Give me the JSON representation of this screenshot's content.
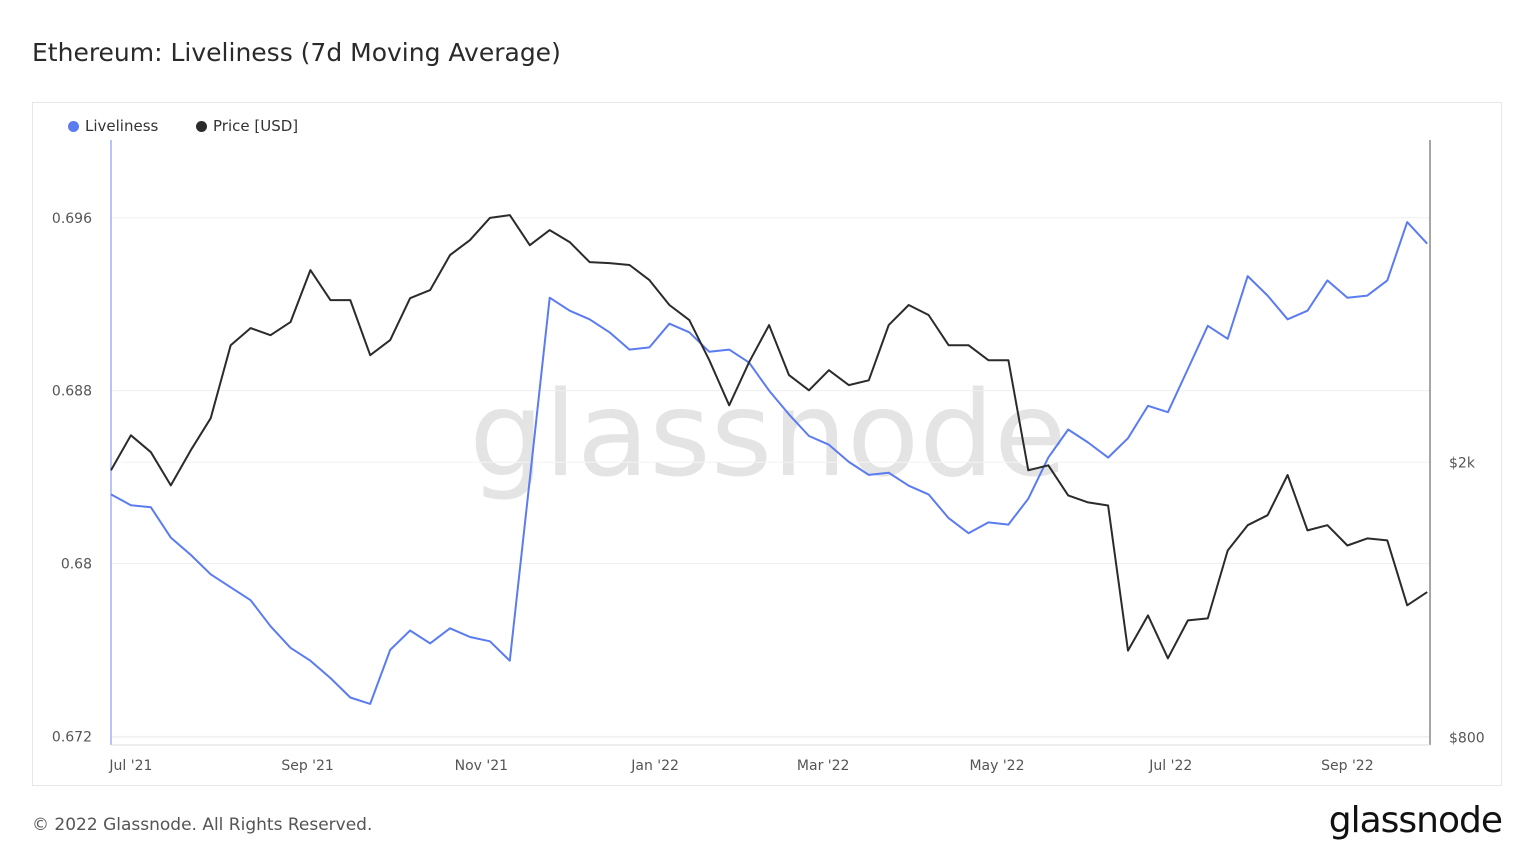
{
  "title": "Ethereum: Liveliness (7d Moving Average)",
  "footer": "© 2022 Glassnode. All Rights Reserved.",
  "logo_text": "glassnode",
  "watermark_text": "glassnode",
  "chart_data": {
    "type": "line",
    "title": "Ethereum: Liveliness (7d Moving Average)",
    "legend_placement": "top-left",
    "grid": true,
    "x_ticks": [
      "Jul '21",
      "Sep '21",
      "Nov '21",
      "Jan '22",
      "Mar '22",
      "May '22",
      "Jul '22",
      "Sep '22"
    ],
    "x_tick_dates": [
      "2021-07-01",
      "2021-09-01",
      "2021-11-01",
      "2022-01-01",
      "2022-03-01",
      "2022-05-01",
      "2022-07-01",
      "2022-09-01"
    ],
    "xlim": [
      "2021-06-24",
      "2022-09-30"
    ],
    "y_left": {
      "ticks": [
        "0.672",
        "0.68",
        "0.688",
        "0.696"
      ],
      "tick_values": [
        0.672,
        0.68,
        0.688,
        0.696
      ],
      "ylim": [
        0.6716,
        0.6996
      ],
      "scale": "linear"
    },
    "y_right": {
      "ticks": [
        "$800",
        "$2k"
      ],
      "tick_values": [
        800,
        2000
      ],
      "ylim": [
        780,
        5850
      ],
      "scale": "log"
    },
    "x": [
      "2021-06-24",
      "2021-07-01",
      "2021-07-08",
      "2021-07-15",
      "2021-07-22",
      "2021-07-29",
      "2021-08-05",
      "2021-08-12",
      "2021-08-19",
      "2021-08-26",
      "2021-09-02",
      "2021-09-09",
      "2021-09-16",
      "2021-09-23",
      "2021-09-30",
      "2021-10-07",
      "2021-10-14",
      "2021-10-21",
      "2021-10-28",
      "2021-11-04",
      "2021-11-11",
      "2021-11-18",
      "2021-11-25",
      "2021-12-02",
      "2021-12-09",
      "2021-12-16",
      "2021-12-23",
      "2021-12-30",
      "2022-01-06",
      "2022-01-13",
      "2022-01-20",
      "2022-01-27",
      "2022-02-03",
      "2022-02-10",
      "2022-02-17",
      "2022-02-24",
      "2022-03-03",
      "2022-03-10",
      "2022-03-17",
      "2022-03-24",
      "2022-03-31",
      "2022-04-07",
      "2022-04-14",
      "2022-04-21",
      "2022-04-28",
      "2022-05-05",
      "2022-05-12",
      "2022-05-19",
      "2022-05-26",
      "2022-06-02",
      "2022-06-09",
      "2022-06-16",
      "2022-06-23",
      "2022-06-30",
      "2022-07-07",
      "2022-07-14",
      "2022-07-21",
      "2022-07-28",
      "2022-08-04",
      "2022-08-11",
      "2022-08-18",
      "2022-08-25",
      "2022-09-01",
      "2022-09-08",
      "2022-09-15",
      "2022-09-22",
      "2022-09-29"
    ],
    "series": [
      {
        "name": "Liveliness",
        "axis": "left",
        "color": "#5b7bf0",
        "values": [
          0.6832,
          0.6827,
          0.6826,
          0.6812,
          0.6804,
          0.6795,
          0.6789,
          0.6783,
          0.6771,
          0.6761,
          0.6755,
          0.6747,
          0.6738,
          0.6735,
          0.676,
          0.6769,
          0.6763,
          0.677,
          0.6766,
          0.6764,
          0.6755,
          0.6839,
          0.6923,
          0.6917,
          0.6913,
          0.6907,
          0.6899,
          0.69,
          0.6911,
          0.6907,
          0.6898,
          0.6899,
          0.6893,
          0.688,
          0.6869,
          0.6859,
          0.6855,
          0.6847,
          0.6841,
          0.6842,
          0.6836,
          0.6832,
          0.6821,
          0.6814,
          0.6819,
          0.6818,
          0.683,
          0.6849,
          0.6862,
          0.6856,
          0.6849,
          0.6858,
          0.6873,
          0.687,
          0.689,
          0.691,
          0.6904,
          0.6933,
          0.6924,
          0.6913,
          0.6917,
          0.6931,
          0.6923,
          0.6924,
          0.6931,
          0.6958,
          0.6948
        ]
      },
      {
        "name": "Price [USD]",
        "axis": "right",
        "color": "#2b2b2b",
        "values": [
          1947,
          2188,
          2068,
          1852,
          2082,
          2316,
          2954,
          3127,
          3054,
          3190,
          3793,
          3432,
          3432,
          2857,
          3004,
          3454,
          3548,
          3987,
          4191,
          4513,
          4556,
          4121,
          4334,
          4164,
          3896,
          3883,
          3858,
          3669,
          3377,
          3211,
          2810,
          2418,
          2791,
          3158,
          2674,
          2542,
          2718,
          2586,
          2628,
          3158,
          3377,
          3266,
          2954,
          2954,
          2810,
          2810,
          1947,
          1980,
          1791,
          1750,
          1732,
          1068,
          1201,
          1041,
          1181,
          1189,
          1491,
          1622,
          1677,
          1917,
          1594,
          1622,
          1516,
          1552,
          1542,
          1242,
          1298
        ]
      }
    ]
  }
}
